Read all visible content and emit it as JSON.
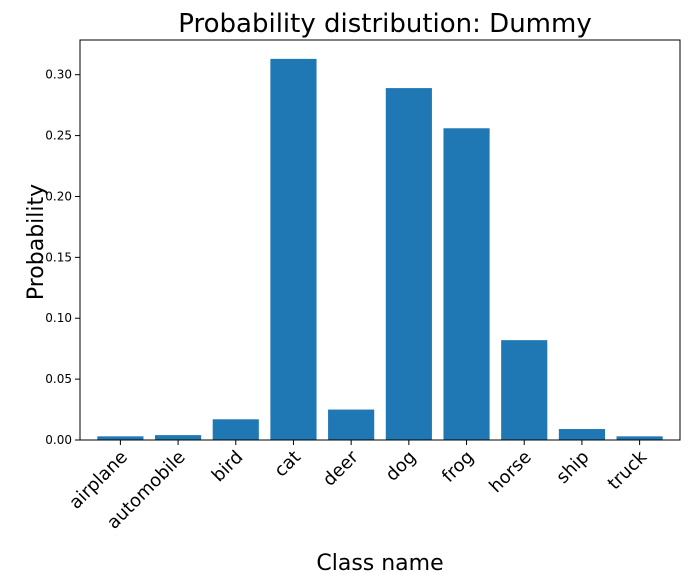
{
  "chart_data": {
    "type": "bar",
    "title": "Probability distribution: Dummy",
    "xlabel": "Class name",
    "ylabel": "Probability",
    "categories": [
      "airplane",
      "automobile",
      "bird",
      "cat",
      "deer",
      "dog",
      "frog",
      "horse",
      "ship",
      "truck"
    ],
    "values": [
      0.003,
      0.004,
      0.017,
      0.313,
      0.025,
      0.289,
      0.256,
      0.082,
      0.009,
      0.003
    ],
    "ylim": [
      0,
      0.3285
    ],
    "yticks": [
      "0.00",
      "0.05",
      "0.10",
      "0.15",
      "0.20",
      "0.25",
      "0.30"
    ],
    "grid": false,
    "bar_color": "#1f77b4"
  }
}
